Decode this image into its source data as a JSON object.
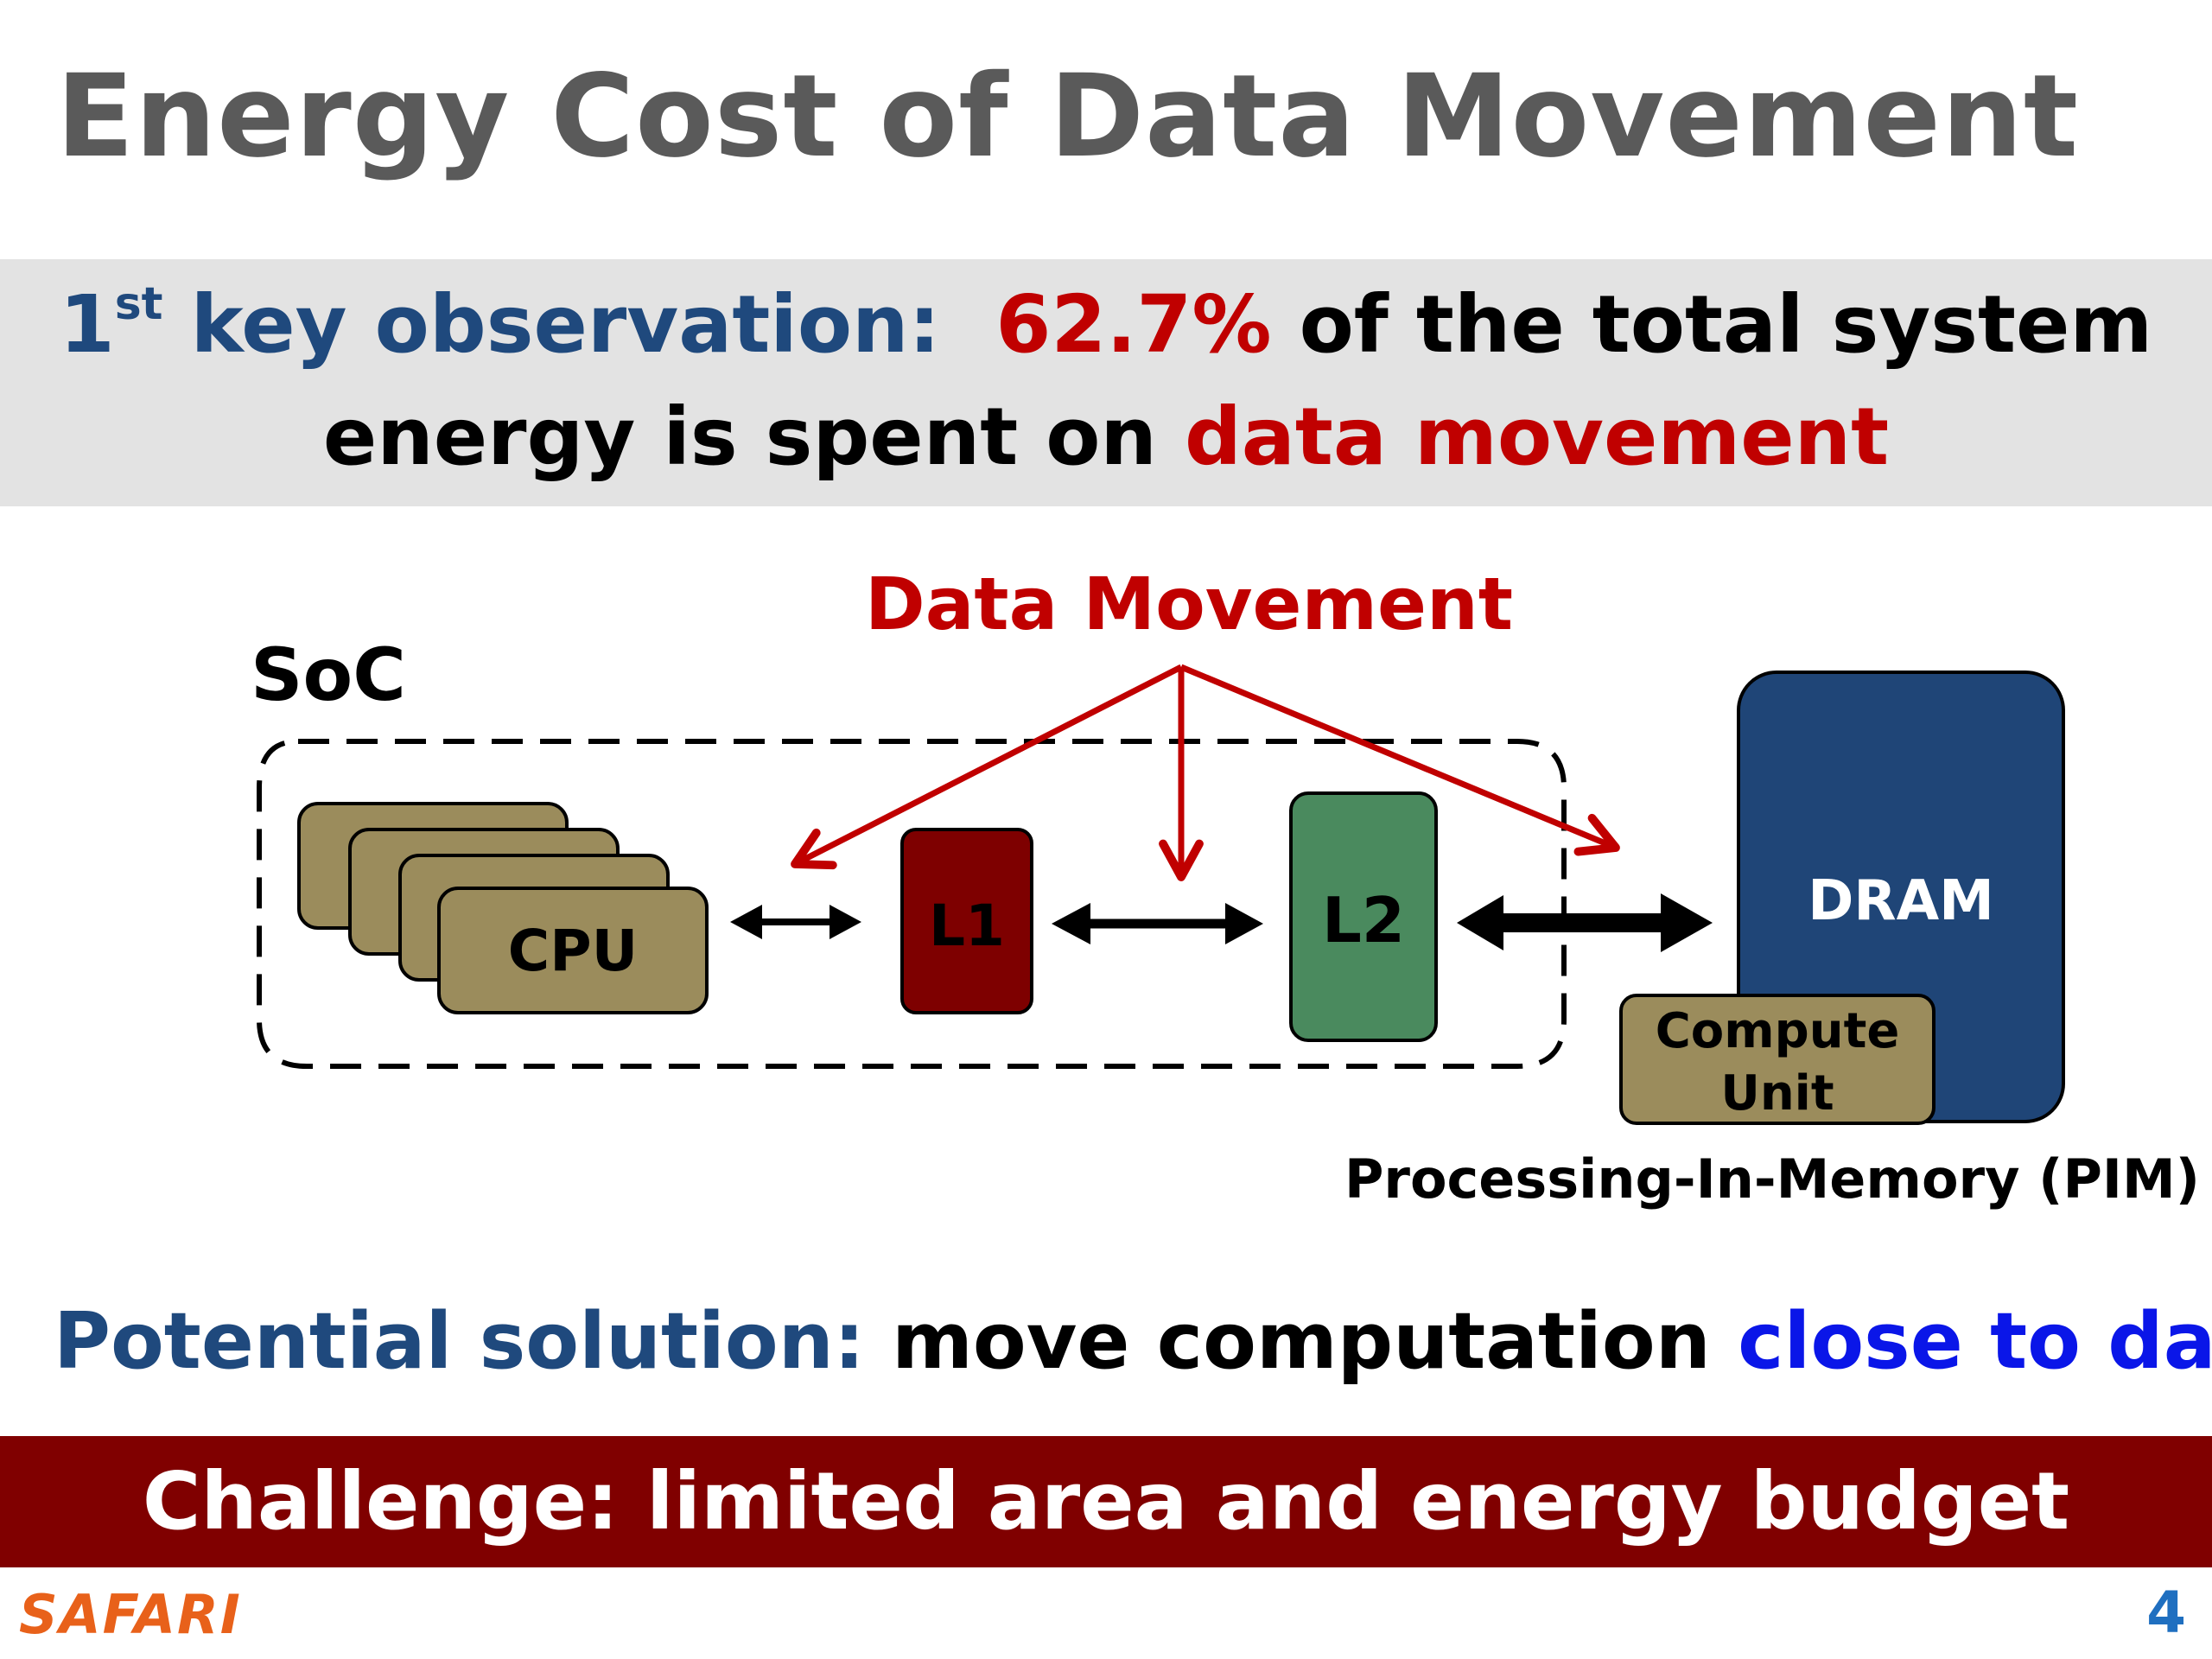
{
  "title": "Energy Cost of Data Movement",
  "observation": {
    "ordinal": "1",
    "ordinal_suffix": "st",
    "label": "key observation:",
    "percent": "62.7%",
    "line1_rest": "of the total system",
    "line2_prefix": "energy is spent on",
    "line2_highlight": "data movement"
  },
  "diagram": {
    "data_movement_label": "Data Movement",
    "soc_label": "SoC",
    "cpu_label": "CPU",
    "l1_label": "L1",
    "l2_label": "L2",
    "dram_label": "DRAM",
    "compute_unit_line1": "Compute",
    "compute_unit_line2": "Unit",
    "pim_label": "Processing-In-Memory (PIM)"
  },
  "solution": {
    "label": "Potential solution:",
    "text": "move computation",
    "highlight": "close to data"
  },
  "challenge": "Challenge: limited area and energy budget",
  "footer": {
    "logo_text": "SAFARI",
    "slide_number": "4"
  },
  "colors": {
    "title_gray": "#5a5a5a",
    "observation_blue": "#1f497d",
    "highlight_red": "#c00000",
    "close_to_data_blue": "#0a16e8",
    "challenge_band": "#800000",
    "cpu_olive": "#9b8c5c",
    "l1_darkred": "#7e0000",
    "l2_green": "#4a8a5e",
    "dram_navy": "#1f4577",
    "logo_orange": "#e8611a"
  }
}
